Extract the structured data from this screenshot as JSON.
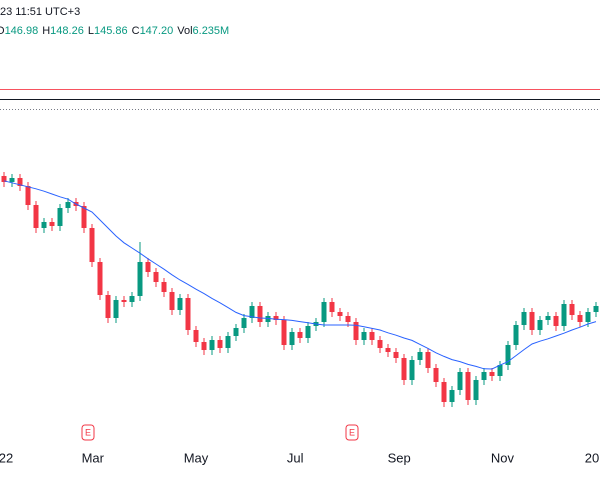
{
  "chart_data": {
    "type": "candlestick",
    "header": {
      "time": "23 11:51 UTC+3",
      "ohlc": [
        {
          "label": "O",
          "value": "146.98"
        },
        {
          "label": "H",
          "value": "148.26"
        },
        {
          "label": "L",
          "value": "145.86"
        },
        {
          "label": "C",
          "value": "147.20"
        },
        {
          "label": "Vol",
          "value": "6.235M"
        }
      ]
    },
    "up_color": "#089981",
    "down_color": "#f23645",
    "xlim": [
      -0.5,
      74.5
    ],
    "ylim": [
      60,
      170
    ],
    "xticks": [
      {
        "value": 0.25,
        "label": "22"
      },
      {
        "value": 11.1,
        "label": "Mar"
      },
      {
        "value": 24.0,
        "label": "May"
      },
      {
        "value": 36.4,
        "label": "Jul"
      },
      {
        "value": 49.4,
        "label": "Sep"
      },
      {
        "value": 62.3,
        "label": "Nov"
      },
      {
        "value": 73.5,
        "label": "20"
      }
    ],
    "open": [
      126,
      124.5,
      125.5,
      123.5,
      118.75,
      113,
      114.5,
      113.5,
      118,
      119.5,
      118.5,
      113,
      104.5,
      96.25,
      90.5,
      95,
      94.5,
      96,
      104.5,
      102,
      99.5,
      97,
      92.5,
      95.5,
      87.5,
      84.5,
      82.5,
      85,
      83,
      86,
      88,
      90.5,
      93.5,
      89.5,
      91,
      90,
      83.75,
      87,
      85.5,
      88.5,
      89.5,
      94.5,
      92,
      91,
      89.5,
      85,
      87,
      85,
      83,
      82,
      80.5,
      75,
      80,
      82,
      78,
      74.5,
      69.5,
      72.5,
      77,
      70,
      75,
      77,
      76,
      78.75,
      83.75,
      88.75,
      92,
      87.5,
      90,
      91,
      88.5,
      94,
      91.25,
      89.5,
      92
    ],
    "high": [
      127,
      126.5,
      126.5,
      124.5,
      119.75,
      115.5,
      115.5,
      119,
      120.5,
      120.5,
      119.5,
      114,
      105.5,
      97.25,
      96,
      96,
      97,
      109.5,
      105.5,
      103,
      100.5,
      98,
      96.5,
      96.5,
      88.5,
      85.5,
      86,
      86,
      87,
      89,
      91.5,
      94.5,
      94.5,
      92,
      92,
      91,
      88,
      88,
      89.5,
      90.5,
      95.5,
      95.5,
      93,
      92,
      90.5,
      88,
      88,
      86,
      84,
      83,
      81.5,
      81,
      83,
      83,
      79,
      75.5,
      73.5,
      78,
      78,
      76,
      78,
      78,
      79.75,
      84.75,
      89.75,
      93,
      93,
      91,
      92,
      92,
      95,
      95,
      92.25,
      93,
      94.5
    ],
    "low": [
      123.25,
      123.25,
      122.25,
      117.5,
      111.75,
      111.75,
      112.25,
      112.25,
      116.75,
      117.25,
      111.75,
      103.25,
      95,
      89.25,
      89.25,
      93.25,
      93.25,
      94.75,
      100.75,
      98.25,
      95.75,
      91.25,
      91.25,
      86.25,
      83.25,
      81.25,
      81.25,
      81.75,
      81.75,
      84.75,
      86.75,
      89.25,
      88.25,
      88.25,
      88.75,
      82.5,
      82.5,
      84.25,
      84.25,
      87.25,
      88.25,
      90.75,
      89.75,
      88.25,
      83.75,
      83.75,
      83.75,
      81.75,
      80.75,
      79.25,
      73.75,
      73.75,
      78.75,
      76.75,
      73.25,
      68.25,
      68.25,
      71.25,
      68.75,
      68.75,
      73.75,
      74.75,
      74.75,
      77.5,
      82.5,
      87.5,
      86.25,
      86.25,
      88.75,
      87.25,
      87.25,
      90,
      88.25,
      88.25,
      90.75
    ],
    "close": [
      124.5,
      125.5,
      123.5,
      118.75,
      113,
      114.5,
      113.5,
      118,
      119.5,
      118.5,
      113,
      104.5,
      96.25,
      90.5,
      95,
      94.5,
      96,
      104.5,
      102,
      99.5,
      97,
      92.5,
      95.5,
      87.5,
      84.5,
      82.5,
      85,
      83,
      86,
      88,
      90.5,
      93.5,
      89.5,
      91,
      90,
      83.75,
      87,
      85.5,
      88.5,
      89.5,
      94.5,
      92,
      91,
      89.5,
      85,
      87,
      85,
      83,
      82,
      80.5,
      75,
      80,
      82,
      78,
      74.5,
      69.5,
      72.5,
      77,
      70,
      75,
      77,
      76,
      78.75,
      83.75,
      88.75,
      92,
      87.5,
      90,
      91,
      88.5,
      94,
      91.25,
      89.5,
      92,
      93.5
    ],
    "ma": {
      "color": "#2962ff",
      "values": [
        124.8,
        124.3,
        123.8,
        123.3,
        122.8,
        122.2,
        121.5,
        120.8,
        120.2,
        119.0,
        118.0,
        117.0,
        115.0,
        113.0,
        111.0,
        109.3,
        108.0,
        106.7,
        105.3,
        104.0,
        102.7,
        101.3,
        100.0,
        98.9,
        97.7,
        96.6,
        95.4,
        94.3,
        93.1,
        91.9,
        91.1,
        90.8,
        90.5,
        90.4,
        90.2,
        90.1,
        89.9,
        89.6,
        89.3,
        89.0,
        88.75,
        88.75,
        88.75,
        88.75,
        88.7,
        88.3,
        87.9,
        87.5,
        86.8,
        86.2,
        85.5,
        84.9,
        83.9,
        82.9,
        81.8,
        80.9,
        80.1,
        79.6,
        78.9,
        78.4,
        77.8,
        77.75,
        78.7,
        79.6,
        81.1,
        82.6,
        84.0,
        84.7,
        85.3,
        86.0,
        86.7,
        87.5,
        88.2,
        89.0,
        89.6
      ]
    },
    "price_lines": [
      {
        "value": 147.75,
        "color": "#f7525f",
        "style": "solid"
      },
      {
        "value": 145.25,
        "color": "#131722",
        "style": "solid"
      },
      {
        "value": 142.75,
        "color": "#787b86",
        "style": "dotted"
      }
    ],
    "annotations": [
      {
        "x": 10.5,
        "label": "E"
      },
      {
        "x": 43.5,
        "label": "E"
      }
    ]
  }
}
